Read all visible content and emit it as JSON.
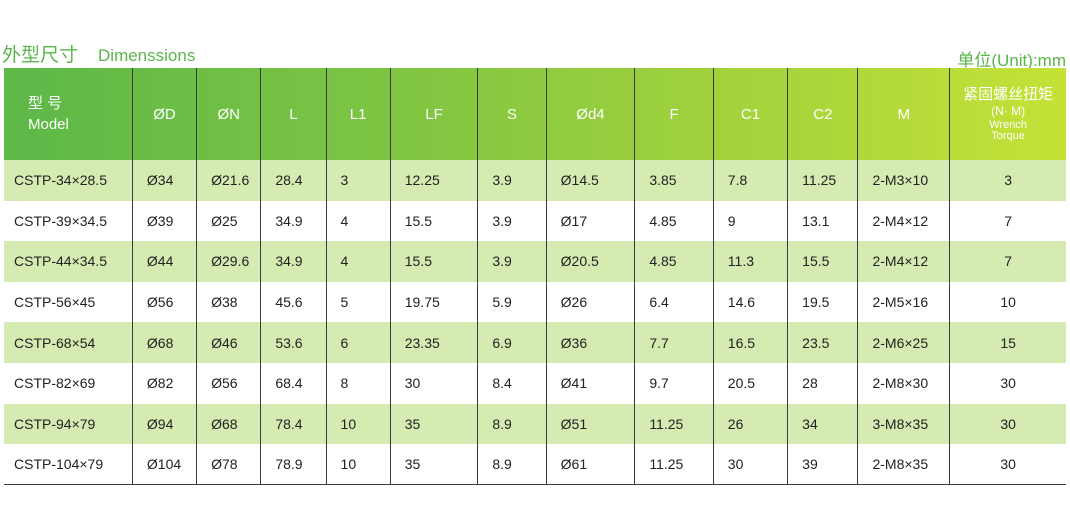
{
  "header": {
    "title_cn": "外型尺寸",
    "title_en": "Dimenssions",
    "unit": "单位(Unit):mm"
  },
  "columns": {
    "model_cn": "型 号",
    "model_en": "Model",
    "d": "ØD",
    "n": "ØN",
    "l": "L",
    "l1": "L1",
    "lf": "LF",
    "s": "S",
    "d4": "Ød4",
    "f": "F",
    "c1": "C1",
    "c2": "C2",
    "m": "M",
    "torque_cn": "紧固螺丝扭矩",
    "torque_unit": "(N· M)",
    "torque_en_1": "Wrench",
    "torque_en_2": "Torque"
  },
  "rows": [
    {
      "model": "CSTP-34×28.5",
      "d": "Ø34",
      "n": "Ø21.6",
      "l": "28.4",
      "l1": "3",
      "lf": "12.25",
      "s": "3.9",
      "d4": "Ø14.5",
      "f": "3.85",
      "c1": "7.8",
      "c2": "11.25",
      "m": "2-M3×10",
      "torque": "3"
    },
    {
      "model": "CSTP-39×34.5",
      "d": "Ø39",
      "n": "Ø25",
      "l": "34.9",
      "l1": "4",
      "lf": "15.5",
      "s": "3.9",
      "d4": "Ø17",
      "f": "4.85",
      "c1": "9",
      "c2": "13.1",
      "m": "2-M4×12",
      "torque": "7"
    },
    {
      "model": "CSTP-44×34.5",
      "d": "Ø44",
      "n": "Ø29.6",
      "l": "34.9",
      "l1": "4",
      "lf": "15.5",
      "s": "3.9",
      "d4": "Ø20.5",
      "f": "4.85",
      "c1": "11.3",
      "c2": "15.5",
      "m": "2-M4×12",
      "torque": "7"
    },
    {
      "model": "CSTP-56×45",
      "d": "Ø56",
      "n": "Ø38",
      "l": "45.6",
      "l1": "5",
      "lf": "19.75",
      "s": "5.9",
      "d4": "Ø26",
      "f": "6.4",
      "c1": "14.6",
      "c2": "19.5",
      "m": "2-M5×16",
      "torque": "10"
    },
    {
      "model": "CSTP-68×54",
      "d": "Ø68",
      "n": "Ø46",
      "l": "53.6",
      "l1": "6",
      "lf": "23.35",
      "s": "6.9",
      "d4": "Ø36",
      "f": "7.7",
      "c1": "16.5",
      "c2": "23.5",
      "m": "2-M6×25",
      "torque": "15"
    },
    {
      "model": "CSTP-82×69",
      "d": "Ø82",
      "n": "Ø56",
      "l": "68.4",
      "l1": "8",
      "lf": "30",
      "s": "8.4",
      "d4": "Ø41",
      "f": "9.7",
      "c1": "20.5",
      "c2": "28",
      "m": "2-M8×30",
      "torque": "30"
    },
    {
      "model": "CSTP-94×79",
      "d": "Ø94",
      "n": "Ø68",
      "l": "78.4",
      "l1": "10",
      "lf": "35",
      "s": "8.9",
      "d4": "Ø51",
      "f": "11.25",
      "c1": "26",
      "c2": "34",
      "m": "3-M8×35",
      "torque": "30"
    },
    {
      "model": "CSTP-104×79",
      "d": "Ø104",
      "n": "Ø78",
      "l": "78.9",
      "l1": "10",
      "lf": "35",
      "s": "8.9",
      "d4": "Ø61",
      "f": "11.25",
      "c1": "30",
      "c2": "39",
      "m": "2-M8×35",
      "torque": "30"
    }
  ],
  "colors": {
    "accent_green": "#5ab54a",
    "header_gradient_start": "#5cb848",
    "header_gradient_end": "#c5e236",
    "row_stripe": "#d5ebb1"
  }
}
